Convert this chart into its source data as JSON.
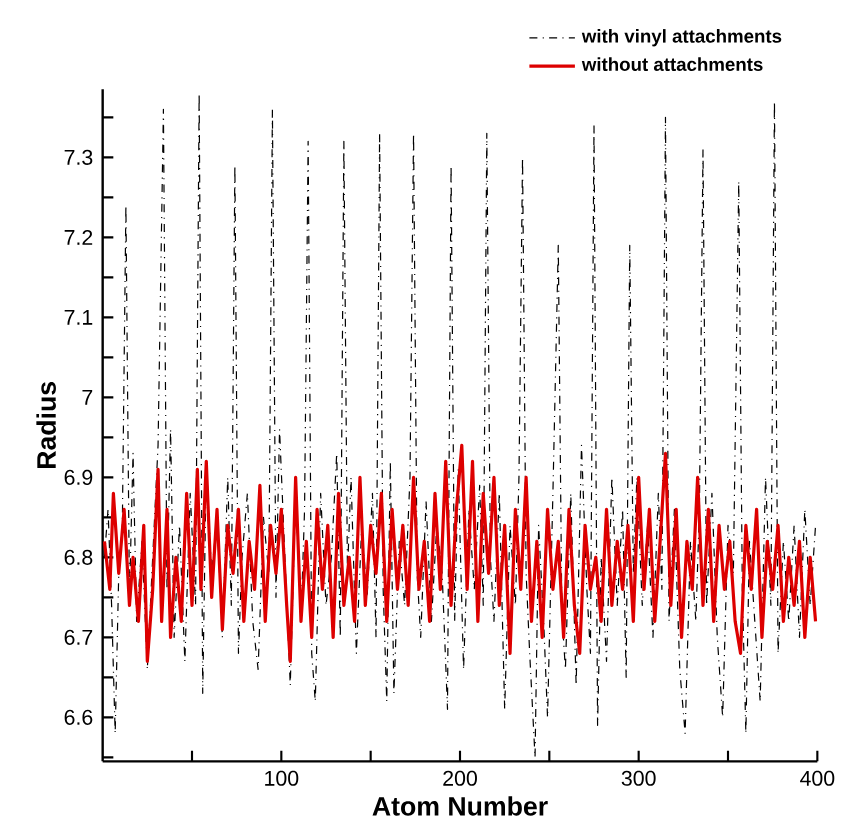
{
  "chart_data": {
    "type": "line",
    "xlabel": "Atom Number",
    "ylabel": "Radius",
    "xlim": [
      0,
      400
    ],
    "ylim": [
      6.545,
      7.385
    ],
    "xticks": [
      {
        "value": 50,
        "label": null
      },
      100,
      {
        "value": 150,
        "label": null
      },
      200,
      {
        "value": 250,
        "label": null
      },
      300,
      {
        "value": 350,
        "label": null
      },
      400
    ],
    "yticks": [
      {
        "value": 6.55,
        "label": null
      },
      6.6,
      {
        "value": 6.65,
        "label": null
      },
      6.7,
      {
        "value": 6.75,
        "label": null
      },
      6.8,
      {
        "value": 6.85,
        "label": null
      },
      6.9,
      {
        "value": 6.95,
        "label": null
      },
      7,
      {
        "value": 7.05,
        "label": null
      },
      7.1,
      {
        "value": 7.15,
        "label": null
      },
      7.2,
      {
        "value": 7.25,
        "label": null
      },
      7.3,
      {
        "value": 7.35,
        "label": null
      }
    ],
    "legend": "top",
    "grid": false,
    "marker": "none",
    "series": [
      {
        "name": "with vinyl attachments",
        "color": "#000000",
        "line_style": "dashed",
        "x": [
          1,
          3,
          5,
          7,
          9,
          11,
          13,
          15,
          17,
          19,
          22,
          25,
          28,
          31,
          34,
          36,
          38,
          40,
          43,
          46,
          49,
          52,
          54,
          56,
          58,
          61,
          64,
          67,
          70,
          72,
          74,
          76,
          78,
          81,
          84,
          87,
          90,
          93,
          95,
          97,
          99,
          102,
          105,
          108,
          111,
          113,
          115,
          117,
          119,
          122,
          125,
          128,
          131,
          133,
          135,
          137,
          139,
          142,
          145,
          148,
          151,
          153,
          155,
          157,
          159,
          161,
          163,
          166,
          169,
          172,
          174,
          176,
          178,
          181,
          184,
          187,
          190,
          193,
          195,
          197,
          199,
          202,
          205,
          208,
          211,
          213,
          215,
          217,
          219,
          222,
          225,
          228,
          231,
          233,
          235,
          237,
          239,
          242,
          244,
          247,
          249,
          252,
          255,
          257,
          259,
          262,
          265,
          268,
          271,
          273,
          275,
          277,
          279,
          282,
          285,
          288,
          291,
          293,
          295,
          297,
          299,
          302,
          305,
          308,
          311,
          313,
          315,
          317,
          320,
          323,
          326,
          329,
          332,
          334,
          336,
          338,
          341,
          344,
          347,
          350,
          353,
          356,
          358,
          360,
          362,
          365,
          368,
          371,
          374,
          376,
          378,
          381,
          384,
          387,
          390,
          393,
          396,
          399
        ],
        "values": [
          6.8,
          6.86,
          6.74,
          6.58,
          6.78,
          6.84,
          7.24,
          6.75,
          6.93,
          6.72,
          6.82,
          6.66,
          6.8,
          6.94,
          7.36,
          6.76,
          6.96,
          6.7,
          6.84,
          6.67,
          6.88,
          6.74,
          7.38,
          6.63,
          6.92,
          6.78,
          6.85,
          6.7,
          6.9,
          6.74,
          7.29,
          6.68,
          6.8,
          6.88,
          6.72,
          6.66,
          6.85,
          6.78,
          7.36,
          6.75,
          6.96,
          6.8,
          6.64,
          6.88,
          6.72,
          6.86,
          7.32,
          6.68,
          6.62,
          6.88,
          6.74,
          6.8,
          6.93,
          6.7,
          7.32,
          6.78,
          6.9,
          6.68,
          6.84,
          6.75,
          6.88,
          6.7,
          7.33,
          6.76,
          6.62,
          6.92,
          6.63,
          6.82,
          6.74,
          6.9,
          7.33,
          6.78,
          6.7,
          6.87,
          6.72,
          6.84,
          6.78,
          6.61,
          7.29,
          6.72,
          6.91,
          6.66,
          6.86,
          6.76,
          6.89,
          6.74,
          7.33,
          6.8,
          6.72,
          6.88,
          6.61,
          6.84,
          6.74,
          6.9,
          7.3,
          6.78,
          6.68,
          6.55,
          6.84,
          6.71,
          6.6,
          6.88,
          7.19,
          6.73,
          6.66,
          6.88,
          6.64,
          6.94,
          6.76,
          6.68,
          7.34,
          6.59,
          6.8,
          6.67,
          6.9,
          6.74,
          6.86,
          6.65,
          7.19,
          6.78,
          6.9,
          6.74,
          6.84,
          6.7,
          6.88,
          6.76,
          7.35,
          6.72,
          6.86,
          6.66,
          6.58,
          6.82,
          6.72,
          6.86,
          7.31,
          6.74,
          6.88,
          6.7,
          6.6,
          6.84,
          6.78,
          7.27,
          6.76,
          6.58,
          6.82,
          6.72,
          6.62,
          6.9,
          6.74,
          7.37,
          6.68,
          6.82,
          6.72,
          6.84,
          6.7,
          6.86,
          6.74,
          6.84
        ]
      },
      {
        "name": "without attachments",
        "color": "#dd0000",
        "line_style": "solid",
        "x": [
          1,
          4,
          6,
          9,
          12,
          15,
          17,
          20,
          23,
          25,
          28,
          31,
          33,
          36,
          38,
          41,
          44,
          47,
          50,
          53,
          55,
          58,
          61,
          64,
          67,
          70,
          73,
          76,
          79,
          82,
          85,
          88,
          91,
          94,
          97,
          100,
          103,
          105,
          108,
          111,
          114,
          117,
          120,
          123,
          126,
          129,
          132,
          135,
          138,
          141,
          144,
          147,
          150,
          153,
          156,
          159,
          162,
          165,
          168,
          171,
          174,
          177,
          180,
          183,
          186,
          189,
          192,
          195,
          198,
          201,
          204,
          207,
          210,
          213,
          216,
          219,
          222,
          225,
          228,
          231,
          234,
          237,
          240,
          243,
          246,
          249,
          252,
          255,
          258,
          261,
          264,
          267,
          270,
          273,
          276,
          279,
          282,
          285,
          288,
          291,
          294,
          297,
          300,
          303,
          306,
          309,
          312,
          315,
          318,
          321,
          324,
          327,
          330,
          333,
          336,
          339,
          342,
          345,
          348,
          351,
          354,
          357,
          360,
          363,
          366,
          369,
          372,
          375,
          378,
          381,
          384,
          387,
          390,
          393,
          396,
          399
        ],
        "values": [
          6.82,
          6.76,
          6.88,
          6.78,
          6.86,
          6.74,
          6.8,
          6.72,
          6.84,
          6.67,
          6.76,
          6.91,
          6.72,
          6.86,
          6.7,
          6.8,
          6.72,
          6.88,
          6.74,
          6.91,
          6.76,
          6.92,
          6.75,
          6.86,
          6.71,
          6.84,
          6.78,
          6.86,
          6.72,
          6.82,
          6.76,
          6.89,
          6.72,
          6.84,
          6.78,
          6.86,
          6.74,
          6.67,
          6.9,
          6.72,
          6.82,
          6.7,
          6.86,
          6.76,
          6.84,
          6.7,
          6.88,
          6.74,
          6.8,
          6.72,
          6.9,
          6.74,
          6.84,
          6.78,
          6.88,
          6.72,
          6.86,
          6.76,
          6.84,
          6.74,
          6.9,
          6.76,
          6.82,
          6.72,
          6.88,
          6.76,
          6.92,
          6.74,
          6.86,
          6.94,
          6.76,
          6.92,
          6.72,
          6.88,
          6.78,
          6.9,
          6.74,
          6.84,
          6.68,
          6.86,
          6.76,
          6.9,
          6.72,
          6.82,
          6.7,
          6.86,
          6.76,
          6.82,
          6.7,
          6.86,
          6.74,
          6.68,
          6.84,
          6.76,
          6.8,
          6.72,
          6.86,
          6.74,
          6.82,
          6.76,
          6.84,
          6.72,
          6.9,
          6.76,
          6.86,
          6.72,
          6.82,
          6.93,
          6.74,
          6.86,
          6.7,
          6.82,
          6.76,
          6.9,
          6.74,
          6.86,
          6.72,
          6.84,
          6.76,
          6.82,
          6.72,
          6.68,
          6.84,
          6.76,
          6.86,
          6.7,
          6.82,
          6.76,
          6.84,
          6.72,
          6.8,
          6.74,
          6.82,
          6.7,
          6.8,
          6.72
        ]
      }
    ]
  }
}
